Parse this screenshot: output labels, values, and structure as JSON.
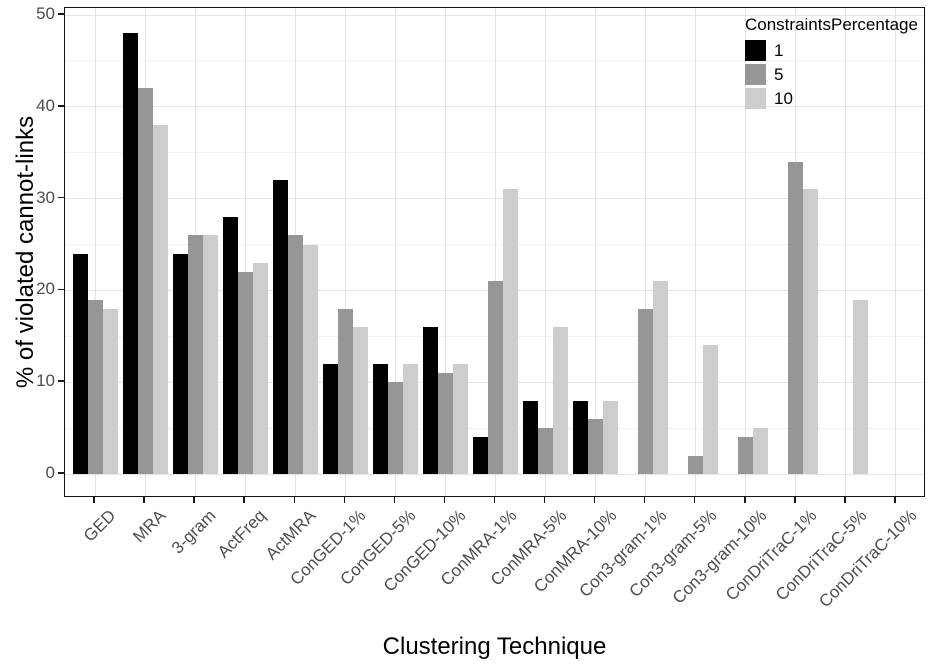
{
  "chart_data": {
    "type": "bar",
    "title": "",
    "xlabel": "Clustering Technique",
    "ylabel": "% of violated cannot-links",
    "ylim": [
      0,
      50
    ],
    "yticks": [
      0,
      10,
      20,
      30,
      40,
      50
    ],
    "yticks_minor": [
      5,
      15,
      25,
      35,
      45
    ],
    "grid": true,
    "legend_position": "top-right-inside",
    "legend": {
      "title": "ConstraintsPercentage",
      "entries": [
        {
          "label": "1",
          "color": "#000000"
        },
        {
          "label": "5",
          "color": "#969696"
        },
        {
          "label": "10",
          "color": "#cdcdcd"
        }
      ]
    },
    "categories": [
      "GED",
      "MRA",
      "3-gram",
      "ActFreq",
      "ActMRA",
      "ConGED-1%",
      "ConGED-5%",
      "ConGED-10%",
      "ConMRA-1%",
      "ConMRA-5%",
      "ConMRA-10%",
      "Con3-gram-1%",
      "Con3-gram-5%",
      "Con3-gram-10%",
      "ConDriTraC-1%",
      "ConDriTraC-5%",
      "ConDriTraC-10%"
    ],
    "series": [
      {
        "name": "1",
        "color": "#000000",
        "values": [
          24,
          48,
          24,
          28,
          32,
          12,
          12,
          16,
          4,
          8,
          8,
          0,
          0,
          0,
          0,
          0,
          0
        ]
      },
      {
        "name": "5",
        "color": "#969696",
        "values": [
          19,
          42,
          26,
          22,
          26,
          18,
          10,
          11,
          21,
          5,
          6,
          18,
          2,
          4,
          34,
          0,
          0
        ]
      },
      {
        "name": "10",
        "color": "#cdcdcd",
        "values": [
          18,
          38,
          26,
          23,
          25,
          16,
          12,
          12,
          31,
          16,
          8,
          21,
          14,
          5,
          31,
          19,
          0
        ]
      }
    ],
    "colors": {
      "panel_border": "#141414",
      "grid_major": "#e4e4e4",
      "grid_minor": "#f2f2f2",
      "axis_text": "#4d4d4d",
      "title_text": "#000000",
      "background": "#ffffff"
    }
  }
}
